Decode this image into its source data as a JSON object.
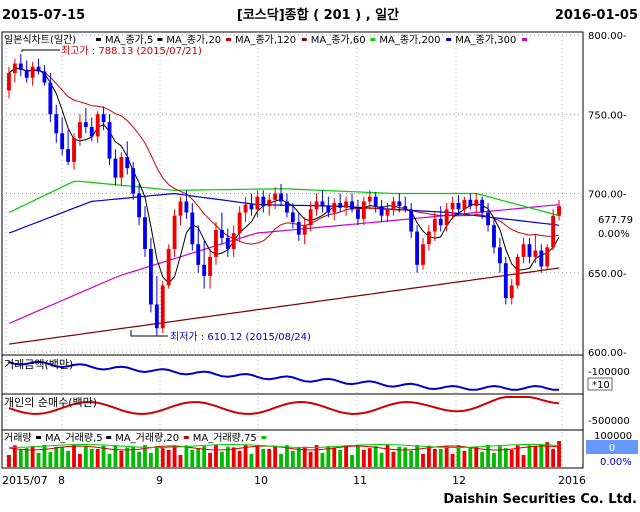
{
  "header": {
    "start_date": "2015-07-15",
    "title": "[코스닥]종합 ( 201 ) , 일간",
    "end_date": "2016-01-05"
  },
  "footer": {
    "brand": "Daishin Securities Co. Ltd."
  },
  "chart_data": {
    "type": "candlestick",
    "price_panel": {
      "legend": [
        {
          "label": "일본식차트(일간)",
          "color": "#000000"
        },
        {
          "label": "MA_종가,5",
          "color": "#000000"
        },
        {
          "label": "MA_종가,20",
          "color": "#cc0000"
        },
        {
          "label": "MA_종가,120",
          "color": "#800000"
        },
        {
          "label": "MA_종가,60",
          "color": "#00cc00"
        },
        {
          "label": "MA_종가,200",
          "color": "#0000cc"
        },
        {
          "label": "MA_종가,300",
          "color": "#cc00cc"
        }
      ],
      "y_ticks": [
        600,
        650,
        700,
        750,
        800
      ],
      "y_tick_labels": [
        "600.00-",
        "650.00-",
        "700.00-",
        "750.00-",
        "800.00-"
      ],
      "ylim": [
        600,
        800
      ],
      "current_value": "677.79",
      "current_change": "0.00%",
      "annotations": {
        "high": {
          "label": "최고가 : 788.13 (2015/07/21)",
          "value": 788.13
        },
        "low": {
          "label": "최저가 : 610.12 (2015/08/24)",
          "value": 610.12
        }
      },
      "candles": [
        [
          765,
          780,
          760,
          776
        ],
        [
          776,
          785,
          770,
          782
        ],
        [
          782,
          788,
          774,
          778
        ],
        [
          778,
          784,
          770,
          773
        ],
        [
          773,
          783,
          768,
          780
        ],
        [
          780,
          785,
          775,
          777
        ],
        [
          777,
          781,
          768,
          770
        ],
        [
          770,
          776,
          745,
          750
        ],
        [
          750,
          756,
          732,
          738
        ],
        [
          738,
          748,
          724,
          728
        ],
        [
          728,
          740,
          718,
          720
        ],
        [
          720,
          738,
          715,
          735
        ],
        [
          735,
          750,
          730,
          745
        ],
        [
          745,
          754,
          738,
          742
        ],
        [
          742,
          748,
          733,
          736
        ],
        [
          736,
          752,
          732,
          750
        ],
        [
          750,
          755,
          740,
          745
        ],
        [
          745,
          750,
          718,
          722
        ],
        [
          722,
          728,
          705,
          710
        ],
        [
          710,
          726,
          705,
          723
        ],
        [
          723,
          733,
          712,
          716
        ],
        [
          716,
          720,
          696,
          700
        ],
        [
          700,
          706,
          680,
          685
        ],
        [
          685,
          692,
          660,
          665
        ],
        [
          665,
          672,
          625,
          630
        ],
        [
          630,
          648,
          610,
          615
        ],
        [
          615,
          645,
          612,
          642
        ],
        [
          642,
          668,
          640,
          665
        ],
        [
          665,
          690,
          660,
          686
        ],
        [
          686,
          698,
          680,
          695
        ],
        [
          695,
          702,
          684,
          688
        ],
        [
          688,
          694,
          664,
          668
        ],
        [
          668,
          680,
          650,
          655
        ],
        [
          655,
          670,
          640,
          648
        ],
        [
          648,
          665,
          640,
          660
        ],
        [
          660,
          682,
          655,
          677
        ],
        [
          677,
          688,
          668,
          672
        ],
        [
          672,
          678,
          660,
          665
        ],
        [
          665,
          680,
          660,
          675
        ],
        [
          675,
          692,
          670,
          688
        ],
        [
          688,
          698,
          682,
          693
        ],
        [
          693,
          700,
          686,
          690
        ],
        [
          690,
          702,
          685,
          698
        ],
        [
          698,
          702,
          688,
          692
        ],
        [
          692,
          700,
          686,
          696
        ],
        [
          696,
          704,
          690,
          700
        ],
        [
          700,
          706,
          692,
          695
        ],
        [
          695,
          700,
          685,
          688
        ],
        [
          688,
          694,
          678,
          682
        ],
        [
          682,
          688,
          670,
          674
        ],
        [
          674,
          685,
          668,
          680
        ],
        [
          680,
          695,
          676,
          690
        ],
        [
          690,
          700,
          686,
          695
        ],
        [
          695,
          702,
          688,
          692
        ],
        [
          692,
          698,
          685,
          688
        ],
        [
          688,
          697,
          683,
          694
        ],
        [
          694,
          700,
          688,
          691
        ],
        [
          691,
          698,
          686,
          695
        ],
        [
          695,
          700,
          688,
          690
        ],
        [
          690,
          696,
          680,
          684
        ],
        [
          684,
          698,
          680,
          695
        ],
        [
          695,
          702,
          690,
          698
        ],
        [
          698,
          701,
          688,
          692
        ],
        [
          692,
          696,
          682,
          686
        ],
        [
          686,
          694,
          682,
          690
        ],
        [
          690,
          698,
          686,
          695
        ],
        [
          695,
          700,
          688,
          692
        ],
        [
          692,
          698,
          688,
          690
        ],
        [
          690,
          694,
          672,
          676
        ],
        [
          676,
          680,
          650,
          655
        ],
        [
          655,
          672,
          652,
          668
        ],
        [
          668,
          680,
          664,
          676
        ],
        [
          676,
          688,
          670,
          684
        ],
        [
          684,
          692,
          676,
          680
        ],
        [
          680,
          694,
          676,
          690
        ],
        [
          690,
          698,
          684,
          694
        ],
        [
          694,
          699,
          686,
          690
        ],
        [
          690,
          698,
          686,
          696
        ],
        [
          696,
          700,
          690,
          692
        ],
        [
          692,
          700,
          688,
          696
        ],
        [
          696,
          698,
          684,
          688
        ],
        [
          688,
          694,
          676,
          680
        ],
        [
          680,
          684,
          662,
          666
        ],
        [
          666,
          672,
          650,
          656
        ],
        [
          656,
          660,
          630,
          634
        ],
        [
          634,
          646,
          630,
          642
        ],
        [
          642,
          662,
          640,
          660
        ],
        [
          660,
          672,
          656,
          668
        ],
        [
          668,
          672,
          656,
          660
        ],
        [
          660,
          674,
          656,
          664
        ],
        [
          664,
          668,
          650,
          654
        ],
        [
          654,
          668,
          652,
          666
        ],
        [
          666,
          690,
          664,
          686
        ],
        [
          686,
          696,
          683,
          692
        ]
      ]
    },
    "volume_value_panel": {
      "label": "거래금액(백만)",
      "y_tick_labels": [
        "-100000"
      ],
      "scale_label": "*10"
    },
    "investor_panel": {
      "label": "개인의 순매수(백만)",
      "y_tick_labels": [
        "-500000"
      ]
    },
    "volume_panel": {
      "legend": [
        {
          "label": "거래량",
          "color": "#000000"
        },
        {
          "label": "MA_거래량,5",
          "color": "#000000"
        },
        {
          "label": "MA_거래량,20",
          "color": "#cc0000"
        },
        {
          "label": "MA_거래량,75",
          "color": "#00cc00"
        }
      ],
      "y_tick_labels": [
        "100000"
      ],
      "current_value": "0",
      "current_change": "0.00%"
    },
    "x_tick_labels": [
      "2015/07",
      "8",
      "9",
      "10",
      "11",
      "12",
      "2016"
    ]
  }
}
